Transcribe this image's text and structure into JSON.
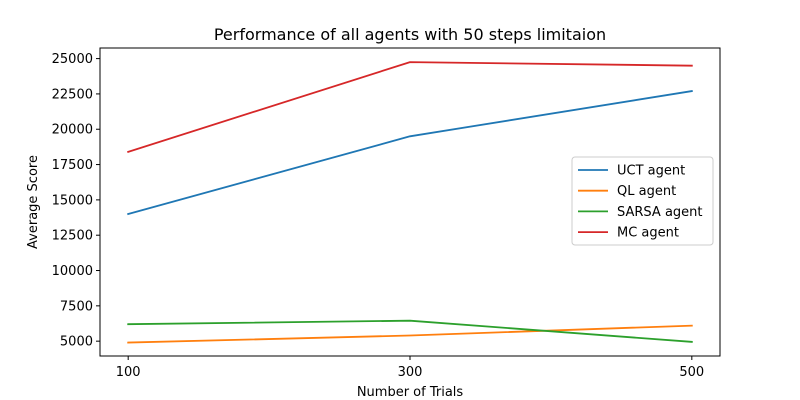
{
  "chart_data": {
    "type": "line",
    "title": "Performance of all agents with 50 steps limitaion",
    "xlabel": "Number of Trials",
    "ylabel": "Average Score",
    "x": [
      100,
      300,
      500
    ],
    "xticks": [
      "100",
      "300",
      "500"
    ],
    "yticks": [
      "5000",
      "7500",
      "10000",
      "12500",
      "15000",
      "17500",
      "20000",
      "22500",
      "25000"
    ],
    "xlim": [
      80,
      520
    ],
    "ylim": [
      3950,
      25750
    ],
    "grid": false,
    "legend_position": "center-right",
    "series": [
      {
        "name": "UCT agent",
        "values": [
          14000,
          19500,
          22700
        ],
        "color": "#1f77b4"
      },
      {
        "name": "QL agent",
        "values": [
          4900,
          5400,
          6100
        ],
        "color": "#ff7f0e"
      },
      {
        "name": "SARSA agent",
        "values": [
          6200,
          6450,
          4950
        ],
        "color": "#2ca02c"
      },
      {
        "name": "MC agent",
        "values": [
          18400,
          24750,
          24500
        ],
        "color": "#d62728"
      }
    ]
  }
}
